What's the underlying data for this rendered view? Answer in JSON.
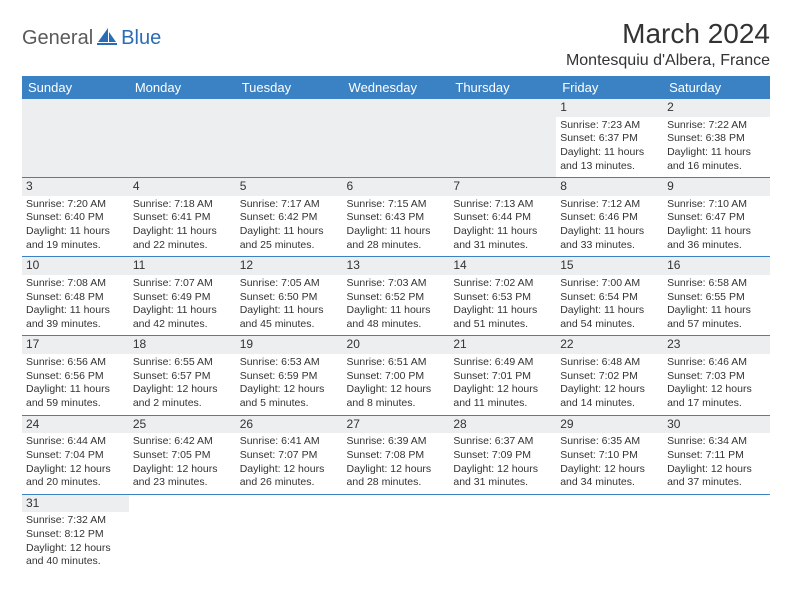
{
  "logo": {
    "part1": "General",
    "part2": "Blue"
  },
  "title": "March 2024",
  "location": "Montesquiu d'Albera, France",
  "weekdays": [
    "Sunday",
    "Monday",
    "Tuesday",
    "Wednesday",
    "Thursday",
    "Friday",
    "Saturday"
  ],
  "colors": {
    "header_bg": "#3b82c4",
    "header_fg": "#ffffff",
    "daynum_bg": "#eceef0",
    "text": "#333333",
    "logo_gray": "#5a5a5a",
    "logo_blue": "#2a6db5",
    "row_border": "#3b82c4"
  },
  "weeks": [
    [
      null,
      null,
      null,
      null,
      null,
      {
        "n": "1",
        "sr": "7:23 AM",
        "ss": "6:37 PM",
        "dl": "11 hours and 13 minutes."
      },
      {
        "n": "2",
        "sr": "7:22 AM",
        "ss": "6:38 PM",
        "dl": "11 hours and 16 minutes."
      }
    ],
    [
      {
        "n": "3",
        "sr": "7:20 AM",
        "ss": "6:40 PM",
        "dl": "11 hours and 19 minutes."
      },
      {
        "n": "4",
        "sr": "7:18 AM",
        "ss": "6:41 PM",
        "dl": "11 hours and 22 minutes."
      },
      {
        "n": "5",
        "sr": "7:17 AM",
        "ss": "6:42 PM",
        "dl": "11 hours and 25 minutes."
      },
      {
        "n": "6",
        "sr": "7:15 AM",
        "ss": "6:43 PM",
        "dl": "11 hours and 28 minutes."
      },
      {
        "n": "7",
        "sr": "7:13 AM",
        "ss": "6:44 PM",
        "dl": "11 hours and 31 minutes."
      },
      {
        "n": "8",
        "sr": "7:12 AM",
        "ss": "6:46 PM",
        "dl": "11 hours and 33 minutes."
      },
      {
        "n": "9",
        "sr": "7:10 AM",
        "ss": "6:47 PM",
        "dl": "11 hours and 36 minutes."
      }
    ],
    [
      {
        "n": "10",
        "sr": "7:08 AM",
        "ss": "6:48 PM",
        "dl": "11 hours and 39 minutes."
      },
      {
        "n": "11",
        "sr": "7:07 AM",
        "ss": "6:49 PM",
        "dl": "11 hours and 42 minutes."
      },
      {
        "n": "12",
        "sr": "7:05 AM",
        "ss": "6:50 PM",
        "dl": "11 hours and 45 minutes."
      },
      {
        "n": "13",
        "sr": "7:03 AM",
        "ss": "6:52 PM",
        "dl": "11 hours and 48 minutes."
      },
      {
        "n": "14",
        "sr": "7:02 AM",
        "ss": "6:53 PM",
        "dl": "11 hours and 51 minutes."
      },
      {
        "n": "15",
        "sr": "7:00 AM",
        "ss": "6:54 PM",
        "dl": "11 hours and 54 minutes."
      },
      {
        "n": "16",
        "sr": "6:58 AM",
        "ss": "6:55 PM",
        "dl": "11 hours and 57 minutes."
      }
    ],
    [
      {
        "n": "17",
        "sr": "6:56 AM",
        "ss": "6:56 PM",
        "dl": "11 hours and 59 minutes."
      },
      {
        "n": "18",
        "sr": "6:55 AM",
        "ss": "6:57 PM",
        "dl": "12 hours and 2 minutes."
      },
      {
        "n": "19",
        "sr": "6:53 AM",
        "ss": "6:59 PM",
        "dl": "12 hours and 5 minutes."
      },
      {
        "n": "20",
        "sr": "6:51 AM",
        "ss": "7:00 PM",
        "dl": "12 hours and 8 minutes."
      },
      {
        "n": "21",
        "sr": "6:49 AM",
        "ss": "7:01 PM",
        "dl": "12 hours and 11 minutes."
      },
      {
        "n": "22",
        "sr": "6:48 AM",
        "ss": "7:02 PM",
        "dl": "12 hours and 14 minutes."
      },
      {
        "n": "23",
        "sr": "6:46 AM",
        "ss": "7:03 PM",
        "dl": "12 hours and 17 minutes."
      }
    ],
    [
      {
        "n": "24",
        "sr": "6:44 AM",
        "ss": "7:04 PM",
        "dl": "12 hours and 20 minutes."
      },
      {
        "n": "25",
        "sr": "6:42 AM",
        "ss": "7:05 PM",
        "dl": "12 hours and 23 minutes."
      },
      {
        "n": "26",
        "sr": "6:41 AM",
        "ss": "7:07 PM",
        "dl": "12 hours and 26 minutes."
      },
      {
        "n": "27",
        "sr": "6:39 AM",
        "ss": "7:08 PM",
        "dl": "12 hours and 28 minutes."
      },
      {
        "n": "28",
        "sr": "6:37 AM",
        "ss": "7:09 PM",
        "dl": "12 hours and 31 minutes."
      },
      {
        "n": "29",
        "sr": "6:35 AM",
        "ss": "7:10 PM",
        "dl": "12 hours and 34 minutes."
      },
      {
        "n": "30",
        "sr": "6:34 AM",
        "ss": "7:11 PM",
        "dl": "12 hours and 37 minutes."
      }
    ],
    [
      {
        "n": "31",
        "sr": "7:32 AM",
        "ss": "8:12 PM",
        "dl": "12 hours and 40 minutes."
      },
      null,
      null,
      null,
      null,
      null,
      null
    ]
  ],
  "labels": {
    "sunrise": "Sunrise:",
    "sunset": "Sunset:",
    "daylight": "Daylight:"
  }
}
